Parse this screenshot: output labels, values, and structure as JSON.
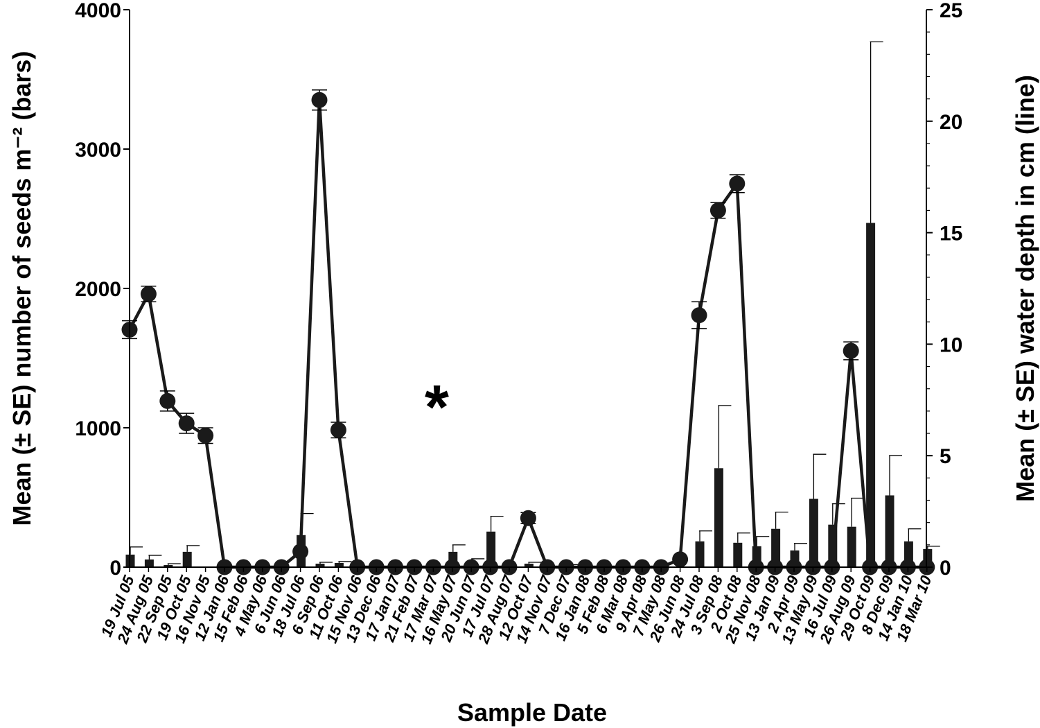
{
  "chart_data": {
    "type": "bar",
    "categories": [
      "19 Jul 05",
      "24 Aug 05",
      "22 Sep 05",
      "19 Oct 05",
      "16 Nov 05",
      "12 Jan 06",
      "15 Feb 06",
      "4 May 06",
      "6 Jun 06",
      "18 Jul 06",
      "6 Sep 06",
      "11 Oct 06",
      "15 Nov 06",
      "13 Dec 06",
      "17 Jan 07",
      "21 Feb 07",
      "17 Mar 07",
      "16 May 07",
      "20 Jun 07",
      "17 Jul 07",
      "28 Aug 07",
      "12 Oct 07",
      "14 Nov 07",
      "7 Dec 07",
      "16 Jan 08",
      "5 Feb 08",
      "6 Mar 08",
      "9 Apr 08",
      "7 May 08",
      "26 Jun 08",
      "24 Jul 08",
      "3 Sep 08",
      "2 Oct 08",
      "25 Nov 08",
      "13 Jan 09",
      "2 Apr 09",
      "13 May 09",
      "16 Jul 09",
      "26 Aug 09",
      "29 Oct 09",
      "8 Dec 09",
      "14 Jan 10",
      "18 Mar 10"
    ],
    "series": [
      {
        "kind": "bar",
        "axis": "left",
        "values": [
          90,
          55,
          15,
          110,
          0,
          0,
          0,
          0,
          0,
          230,
          25,
          30,
          0,
          0,
          0,
          0,
          0,
          110,
          40,
          255,
          0,
          25,
          0,
          10,
          0,
          0,
          0,
          0,
          0,
          0,
          185,
          710,
          175,
          150,
          275,
          120,
          490,
          305,
          290,
          2470,
          515,
          185,
          130
        ],
        "errors": [
          55,
          30,
          10,
          45,
          0,
          0,
          0,
          0,
          0,
          155,
          10,
          10,
          0,
          0,
          0,
          0,
          0,
          50,
          20,
          110,
          0,
          10,
          0,
          8,
          0,
          0,
          0,
          0,
          0,
          0,
          75,
          450,
          70,
          70,
          120,
          50,
          320,
          150,
          205,
          1300,
          285,
          90,
          20
        ]
      },
      {
        "kind": "line",
        "axis": "right",
        "values": [
          10.65,
          12.25,
          7.45,
          6.45,
          5.9,
          0,
          0,
          0,
          0,
          0.7,
          20.95,
          6.15,
          0,
          0,
          0,
          0,
          0,
          0,
          0,
          0,
          0,
          2.2,
          0,
          0,
          0,
          0,
          0,
          0,
          0,
          0.35,
          11.3,
          16,
          17.2,
          0,
          0,
          0,
          0,
          0,
          9.7,
          0,
          0,
          0,
          0
        ],
        "errors": [
          0.4,
          0.35,
          0.45,
          0.45,
          0.35,
          0,
          0,
          0,
          0,
          0,
          0.45,
          0.35,
          0,
          0,
          0,
          0,
          0,
          0,
          0,
          0,
          0,
          0.25,
          0,
          0,
          0,
          0,
          0,
          0,
          0,
          0,
          0.6,
          0.35,
          0.4,
          0,
          0,
          0,
          0,
          0,
          0.4,
          0,
          0,
          0,
          0
        ]
      }
    ],
    "left_axis": {
      "ylim": [
        0,
        4000
      ],
      "ticks": [
        0,
        1000,
        2000,
        3000,
        4000
      ],
      "tick_labels": [
        "0",
        "1000",
        "2000",
        "3000",
        "4000"
      ]
    },
    "right_axis": {
      "ylim": [
        0,
        25
      ],
      "ticks": [
        0,
        5,
        10,
        15,
        20,
        25
      ],
      "tick_labels": [
        "0",
        "5",
        "10",
        "15",
        "20",
        "25"
      ]
    },
    "xlabel": "Sample Date",
    "ylabel_left": "Mean (± SE) number of seeds m⁻² (bars)",
    "ylabel_right": "Mean (± SE) water depth in cm (line)",
    "annotation": "*",
    "annotation_category": "17 Mar 07",
    "grid": false,
    "colors": {
      "bars": "#1a1a1a",
      "line": "#1a1a1a",
      "markers": "#1a1a1a"
    }
  }
}
